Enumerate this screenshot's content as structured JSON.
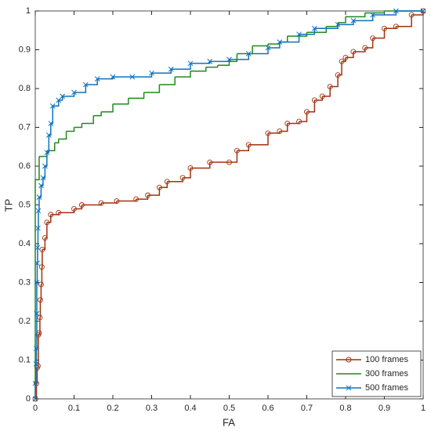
{
  "chart_data": {
    "type": "line",
    "step": "post",
    "xlabel": "FA",
    "ylabel": "TP",
    "xlim": [
      0,
      1
    ],
    "ylim": [
      0,
      1
    ],
    "xticks": [
      0,
      0.1,
      0.2,
      0.3,
      0.4,
      0.5,
      0.6,
      0.7,
      0.8,
      0.9,
      1
    ],
    "yticks": [
      0,
      0.1,
      0.2,
      0.3,
      0.4,
      0.5,
      0.6,
      0.7,
      0.8,
      0.9,
      1
    ],
    "legend": "lower right",
    "series": [
      {
        "name": "100 frames",
        "color": "#a2310f",
        "marker": "circle",
        "x": [
          0,
          0.003,
          0.005,
          0.007,
          0.008,
          0.01,
          0.012,
          0.013,
          0.015,
          0.017,
          0.018,
          0.025,
          0.03,
          0.04,
          0.06,
          0.1,
          0.12,
          0.17,
          0.21,
          0.26,
          0.29,
          0.32,
          0.34,
          0.38,
          0.4,
          0.45,
          0.5,
          0.52,
          0.55,
          0.6,
          0.63,
          0.65,
          0.68,
          0.7,
          0.72,
          0.74,
          0.76,
          0.78,
          0.79,
          0.8,
          0.82,
          0.85,
          0.87,
          0.9,
          0.93,
          0.97,
          1
        ],
        "values": [
          0,
          0.04,
          0.08,
          0.085,
          0.165,
          0.17,
          0.21,
          0.255,
          0.295,
          0.34,
          0.385,
          0.415,
          0.455,
          0.475,
          0.48,
          0.49,
          0.5,
          0.505,
          0.51,
          0.515,
          0.525,
          0.545,
          0.56,
          0.57,
          0.595,
          0.61,
          0.61,
          0.64,
          0.655,
          0.685,
          0.69,
          0.71,
          0.715,
          0.74,
          0.77,
          0.78,
          0.805,
          0.835,
          0.87,
          0.88,
          0.895,
          0.905,
          0.93,
          0.955,
          0.96,
          0.99,
          1
        ]
      },
      {
        "name": "300 frames",
        "color": "#21891c",
        "marker": "none",
        "x": [
          0,
          0,
          0.01,
          0.03,
          0.05,
          0.06,
          0.08,
          0.1,
          0.12,
          0.15,
          0.17,
          0.2,
          0.24,
          0.28,
          0.32,
          0.36,
          0.4,
          0.44,
          0.47,
          0.5,
          0.52,
          0.56,
          0.6,
          0.63,
          0.65,
          0.7,
          0.75,
          0.78,
          0.8,
          0.85,
          0.9,
          1
        ],
        "values": [
          0,
          0.565,
          0.625,
          0.64,
          0.66,
          0.67,
          0.69,
          0.7,
          0.71,
          0.73,
          0.74,
          0.76,
          0.775,
          0.79,
          0.81,
          0.83,
          0.845,
          0.855,
          0.86,
          0.87,
          0.89,
          0.91,
          0.915,
          0.92,
          0.935,
          0.945,
          0.96,
          0.97,
          0.985,
          0.995,
          1,
          1
        ]
      },
      {
        "name": "500 frames",
        "color": "#0f72bd",
        "marker": "x",
        "x": [
          0,
          0,
          0.002,
          0.003,
          0.004,
          0.004,
          0.005,
          0.006,
          0.007,
          0.008,
          0.01,
          0.015,
          0.02,
          0.025,
          0.03,
          0.035,
          0.04,
          0.045,
          0.06,
          0.07,
          0.1,
          0.13,
          0.16,
          0.2,
          0.25,
          0.3,
          0.35,
          0.4,
          0.45,
          0.5,
          0.55,
          0.6,
          0.63,
          0.68,
          0.72,
          0.78,
          0.82,
          0.87,
          0.93,
          1
        ],
        "values": [
          0,
          0.04,
          0.09,
          0.13,
          0.22,
          0.3,
          0.35,
          0.39,
          0.44,
          0.485,
          0.52,
          0.55,
          0.57,
          0.6,
          0.635,
          0.68,
          0.71,
          0.755,
          0.77,
          0.78,
          0.79,
          0.81,
          0.825,
          0.83,
          0.83,
          0.84,
          0.85,
          0.865,
          0.87,
          0.875,
          0.89,
          0.905,
          0.92,
          0.94,
          0.955,
          0.965,
          0.975,
          0.99,
          1,
          1
        ]
      }
    ]
  }
}
